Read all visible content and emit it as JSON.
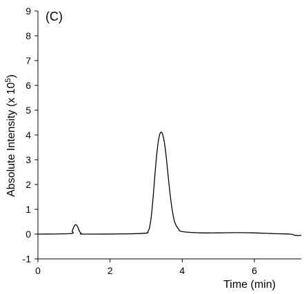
{
  "chart_data": {
    "type": "line",
    "panel_label": "(C)",
    "xlabel": "Time (min)",
    "ylabel_main": "Absolute Intensity (x 10",
    "ylabel_exponent": "5",
    "ylabel_close": ")",
    "xlim": [
      0,
      7.3
    ],
    "ylim": [
      -1,
      9
    ],
    "x_ticks": [
      0,
      2,
      4,
      6
    ],
    "y_ticks": [
      -1,
      0,
      1,
      2,
      3,
      4,
      5,
      6,
      7,
      8,
      9
    ],
    "grid": false,
    "legend": "none",
    "series": [
      {
        "color": "#000000",
        "x": [
          0,
          0.9,
          0.95,
          1.0,
          1.05,
          1.1,
          1.15,
          1.2,
          1.3,
          2.5,
          3.0,
          3.05,
          3.1,
          3.15,
          3.2,
          3.25,
          3.3,
          3.35,
          3.4,
          3.45,
          3.5,
          3.55,
          3.6,
          3.65,
          3.7,
          3.75,
          3.8,
          3.9,
          4.0,
          4.5,
          5.0,
          5.5,
          6.0,
          6.5,
          7.0,
          7.1,
          7.2,
          7.3
        ],
        "y": [
          0,
          0.02,
          0.12,
          0.3,
          0.38,
          0.3,
          0.12,
          0.03,
          0,
          0.01,
          0.04,
          0.1,
          0.3,
          0.8,
          1.6,
          2.5,
          3.3,
          3.85,
          4.1,
          4.05,
          3.75,
          3.2,
          2.5,
          1.8,
          1.2,
          0.75,
          0.45,
          0.2,
          0.1,
          0.05,
          0.05,
          0.06,
          0.05,
          0.02,
          0,
          -0.04,
          -0.06,
          -0.05
        ]
      }
    ]
  }
}
